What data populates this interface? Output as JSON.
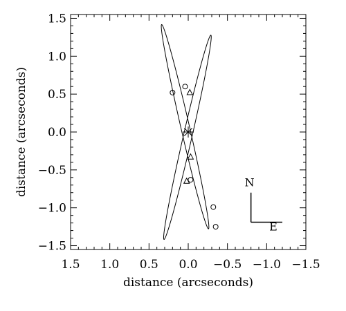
{
  "chart_data": {
    "type": "scatter",
    "xlabel": "distance (arcseconds)",
    "ylabel": "distance (arcseconds)",
    "xlim": [
      1.5,
      -1.5
    ],
    "ylim": [
      -1.55,
      1.55
    ],
    "x_ticks": [
      1.5,
      1.0,
      0.5,
      0.0,
      -0.5,
      -1.0,
      -1.5
    ],
    "x_tick_labels": [
      "1.5",
      "1.0",
      "0.5",
      "0.0",
      "−0.5",
      "−1.0",
      "−1.5"
    ],
    "y_ticks": [
      1.5,
      1.0,
      0.5,
      0.0,
      -0.5,
      -1.0,
      -1.5
    ],
    "y_tick_labels": [
      "1.5",
      "1.0",
      "0.5",
      "0.0",
      "−0.5",
      "−1.0",
      "−1.5"
    ],
    "center": {
      "x": 0.0,
      "y": 0.0,
      "symbol": "asterisk"
    },
    "orbits": [
      {
        "cx": 0.01,
        "cy": -0.07,
        "a": 1.38,
        "b": 0.055,
        "angle_deg": 102.5
      },
      {
        "cx": 0.04,
        "cy": 0.07,
        "a": 1.38,
        "b": 0.055,
        "angle_deg": 77.5
      }
    ],
    "series": [
      {
        "marker": "circle",
        "x": [
          0.2,
          0.04,
          -0.03,
          -0.32,
          -0.35
        ],
        "y": [
          0.52,
          0.6,
          -0.63,
          -0.99,
          -1.25
        ]
      },
      {
        "marker": "triangle",
        "x": [
          -0.02,
          -0.03,
          0.02
        ],
        "y": [
          0.52,
          -0.33,
          -0.65
        ]
      }
    ],
    "compass": {
      "north_label": "N",
      "east_label": "E"
    },
    "grid": false
  }
}
